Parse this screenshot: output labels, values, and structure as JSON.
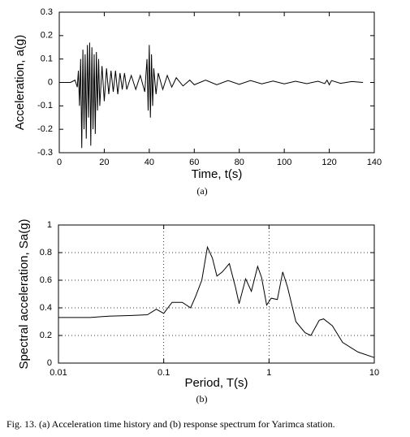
{
  "chart_data": [
    {
      "type": "line",
      "label": "(a)",
      "xlabel": "Time, t(s)",
      "ylabel": "Acceleration, a(g)",
      "xlim": [
        0,
        140
      ],
      "ylim": [
        -0.3,
        0.3
      ],
      "xticks": [
        0,
        20,
        40,
        60,
        80,
        100,
        120,
        140
      ],
      "yticks": [
        -0.3,
        -0.2,
        -0.1,
        0,
        0.1,
        0.2,
        0.3
      ],
      "grid": false,
      "log_x": false,
      "color": "#000000",
      "x": [
        0,
        5,
        7,
        8,
        8.5,
        9,
        9.5,
        10,
        10.5,
        11,
        11.5,
        12,
        12.5,
        13,
        13.5,
        14,
        14.5,
        15,
        15.5,
        16,
        16.5,
        17,
        17.5,
        18,
        19,
        20,
        21,
        22,
        23,
        24,
        25,
        26,
        27,
        28,
        29,
        30,
        32,
        34,
        36,
        38,
        39,
        39.5,
        40,
        40.5,
        41,
        41.5,
        42,
        43,
        44,
        46,
        48,
        50,
        52,
        55,
        58,
        60,
        65,
        70,
        75,
        80,
        85,
        90,
        95,
        100,
        105,
        110,
        115,
        118,
        119,
        120,
        121,
        125,
        130,
        135
      ],
      "values": [
        0,
        0,
        0.01,
        -0.02,
        0.05,
        -0.1,
        0.1,
        -0.28,
        0.14,
        -0.2,
        0.12,
        -0.24,
        0.16,
        -0.15,
        0.17,
        -0.27,
        0.15,
        -0.2,
        0.12,
        -0.22,
        0.13,
        -0.12,
        0.1,
        -0.1,
        0.07,
        -0.08,
        0.06,
        -0.05,
        0.05,
        -0.04,
        0.05,
        -0.05,
        0.04,
        -0.03,
        0.04,
        -0.03,
        0.03,
        -0.03,
        0.03,
        -0.04,
        0.1,
        -0.12,
        0.16,
        -0.15,
        0.12,
        -0.1,
        0.06,
        -0.05,
        0.04,
        -0.03,
        0.03,
        -0.02,
        0.02,
        -0.015,
        0.01,
        -0.01,
        0.01,
        -0.01,
        0.008,
        -0.008,
        0.008,
        -0.006,
        0.006,
        -0.006,
        0.005,
        -0.005,
        0.005,
        -0.005,
        0.01,
        -0.01,
        0.008,
        -0.004,
        0.004,
        0
      ]
    },
    {
      "type": "line",
      "label": "(b)",
      "xlabel": "Period, T(s)",
      "ylabel": "Spectral acceleration, Sa(g)",
      "xlim": [
        0.01,
        10
      ],
      "ylim": [
        0,
        1
      ],
      "xticks": [
        0.01,
        0.1,
        1,
        10
      ],
      "yticks": [
        0,
        0.2,
        0.4,
        0.6,
        0.8,
        1
      ],
      "grid": true,
      "log_x": true,
      "color": "#000000",
      "x": [
        0.01,
        0.02,
        0.03,
        0.05,
        0.07,
        0.085,
        0.1,
        0.12,
        0.15,
        0.18,
        0.2,
        0.23,
        0.26,
        0.29,
        0.32,
        0.36,
        0.42,
        0.48,
        0.52,
        0.6,
        0.68,
        0.78,
        0.85,
        0.95,
        1.05,
        1.2,
        1.35,
        1.5,
        1.8,
        2.2,
        2.5,
        3,
        3.3,
        4,
        5,
        7,
        10
      ],
      "values": [
        0.33,
        0.33,
        0.34,
        0.345,
        0.35,
        0.39,
        0.36,
        0.44,
        0.44,
        0.4,
        0.48,
        0.6,
        0.84,
        0.76,
        0.63,
        0.66,
        0.72,
        0.55,
        0.43,
        0.61,
        0.52,
        0.7,
        0.62,
        0.42,
        0.47,
        0.46,
        0.66,
        0.55,
        0.3,
        0.22,
        0.2,
        0.31,
        0.32,
        0.27,
        0.15,
        0.08,
        0.04
      ]
    }
  ],
  "caption": "Fig. 13.  (a) Acceleration time history and (b) response spectrum for Yarimca station."
}
